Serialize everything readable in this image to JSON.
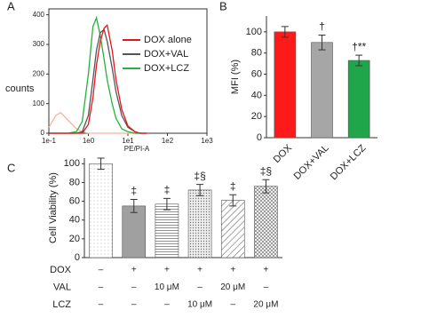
{
  "chart_data": [
    {
      "type": "line",
      "panel_label": "A",
      "x_label": "PE/PI-A",
      "y_label": "counts",
      "log_x": true,
      "x": [
        0.1,
        0.15,
        0.2,
        0.3,
        0.5,
        0.7,
        1,
        1.3,
        1.6,
        2,
        2.5,
        3,
        4,
        5,
        7,
        10,
        15,
        20,
        30
      ],
      "xlim": [
        0.1,
        1000
      ],
      "xticks": [
        {
          "value": 0.1,
          "label": "1e-1"
        },
        {
          "value": 1,
          "label": "1e0"
        },
        {
          "value": 10,
          "label": "1e1"
        },
        {
          "value": 100,
          "label": "1e2"
        },
        {
          "value": 1000,
          "label": "1e3"
        }
      ],
      "ylim": [
        0,
        420
      ],
      "yticks": [
        0,
        100,
        200,
        300,
        400
      ],
      "series": [
        {
          "color": "#f6b39a",
          "values": [
            20,
            60,
            70,
            45,
            15,
            5,
            0,
            0,
            0,
            0,
            0,
            0,
            0,
            0,
            0,
            0,
            0,
            0,
            0
          ]
        },
        {
          "name": "DOX+LCZ",
          "color": "#22b33a",
          "values": [
            0,
            0,
            0,
            0,
            5,
            40,
            200,
            360,
            390,
            330,
            250,
            180,
            100,
            50,
            15,
            5,
            0,
            0,
            0
          ]
        },
        {
          "name": "DOX+VAL",
          "color": "#555555",
          "values": [
            0,
            0,
            0,
            0,
            0,
            5,
            60,
            180,
            280,
            340,
            350,
            310,
            220,
            140,
            60,
            20,
            5,
            0,
            0
          ]
        },
        {
          "name": "DOX alone",
          "color": "#e8141c",
          "values": [
            0,
            0,
            0,
            0,
            0,
            0,
            30,
            120,
            230,
            310,
            355,
            365,
            280,
            180,
            80,
            25,
            5,
            0,
            0
          ]
        }
      ],
      "legend_order": [
        "DOX alone",
        "DOX+VAL",
        "DOX+LCZ"
      ]
    },
    {
      "type": "bar",
      "panel_label": "B",
      "y_label": "MFI (%)",
      "categories": [
        "DOX",
        "DOX+VAL",
        "DOX+LCZ"
      ],
      "values": [
        100,
        90,
        73
      ],
      "errors": [
        5,
        7,
        5
      ],
      "colors": [
        "#ff1a1a",
        "#a6a6a6",
        "#1fa64a"
      ],
      "annotations": [
        null,
        "†",
        "†**"
      ],
      "ylim": [
        0,
        115
      ],
      "yticks": [
        0,
        20,
        40,
        60,
        80,
        100
      ]
    },
    {
      "type": "bar",
      "panel_label": "C",
      "y_label": "Cell Viability (%)",
      "values": [
        100,
        55,
        57,
        72,
        61,
        76
      ],
      "errors": [
        6,
        7,
        6,
        6,
        6,
        7
      ],
      "patterns": [
        "dots",
        "solid",
        "hlines",
        "dense-dots",
        "diagonal",
        "cross"
      ],
      "annotations": [
        null,
        "‡",
        "‡",
        "‡§",
        "‡",
        "‡§"
      ],
      "ylim": [
        0,
        106
      ],
      "yticks": [
        0,
        20,
        40,
        60,
        80,
        100
      ],
      "rows": [
        {
          "label": "DOX",
          "cells": [
            "–",
            "+",
            "+",
            "+",
            "+",
            "+"
          ]
        },
        {
          "label": "VAL",
          "cells": [
            "–",
            "–",
            "10 μM",
            "–",
            "20 μM",
            "–"
          ]
        },
        {
          "label": "LCZ",
          "cells": [
            "–",
            "–",
            "–",
            "10 μM",
            "–",
            "20 μM"
          ]
        }
      ]
    }
  ]
}
